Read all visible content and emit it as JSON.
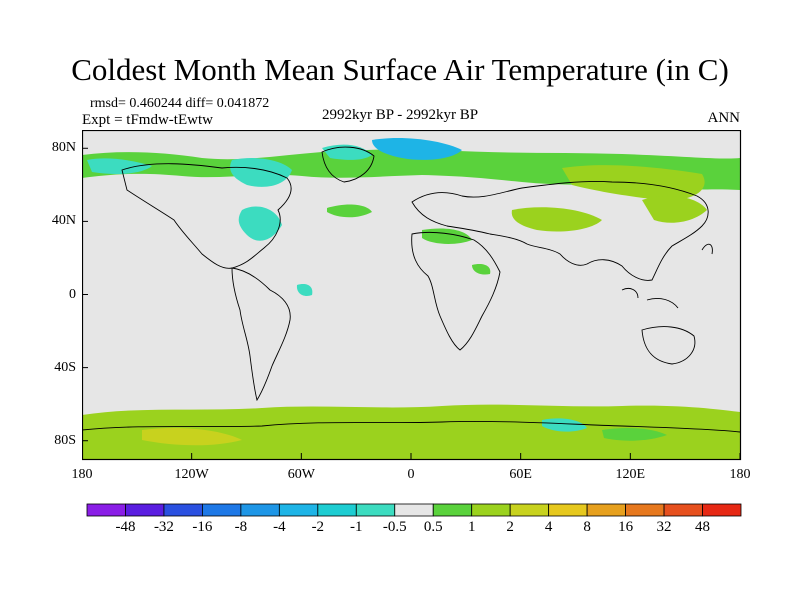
{
  "title": "Coldest Month Mean Surface Air Temperature (in C)",
  "stats": {
    "rmsd_line": "rmsd= 0.460244 diff= 0.041872",
    "expt_line": "Expt = tFmdw-tEwtw"
  },
  "period": "2992kyr BP - 2992kyr BP",
  "season": "ANN",
  "axes": {
    "lat_labels": [
      "80N",
      "40N",
      "0",
      "40S",
      "80S"
    ],
    "lat_values": [
      80,
      40,
      0,
      -40,
      -80
    ],
    "lon_labels": [
      "180",
      "120W",
      "60W",
      "0",
      "60E",
      "120E",
      "180"
    ],
    "lon_values": [
      -180,
      -120,
      -60,
      0,
      60,
      120,
      180
    ],
    "lat_range": [
      -90,
      90
    ],
    "lon_range": [
      -180,
      180
    ]
  },
  "colorbar": {
    "labels": [
      "-48",
      "-32",
      "-16",
      "-8",
      "-4",
      "-2",
      "-1",
      "-0.5",
      "0.5",
      "1",
      "2",
      "4",
      "8",
      "16",
      "32",
      "48"
    ],
    "colors": [
      "#8a1ee6",
      "#5a1ee0",
      "#2a50e0",
      "#1e78e6",
      "#1e96e6",
      "#1eb4e6",
      "#1ecdd2",
      "#3cdcc0",
      "#e6e6e6",
      "#5ad23c",
      "#9bd21e",
      "#c8d21e",
      "#e6c81e",
      "#e6a01e",
      "#e6781e",
      "#e6501e",
      "#e62814"
    ]
  },
  "colors": {
    "land_ocean_background": "#e6e6e6",
    "warm_anomaly": "#9bd21e",
    "cold_anomaly": "#3cdcc0"
  }
}
